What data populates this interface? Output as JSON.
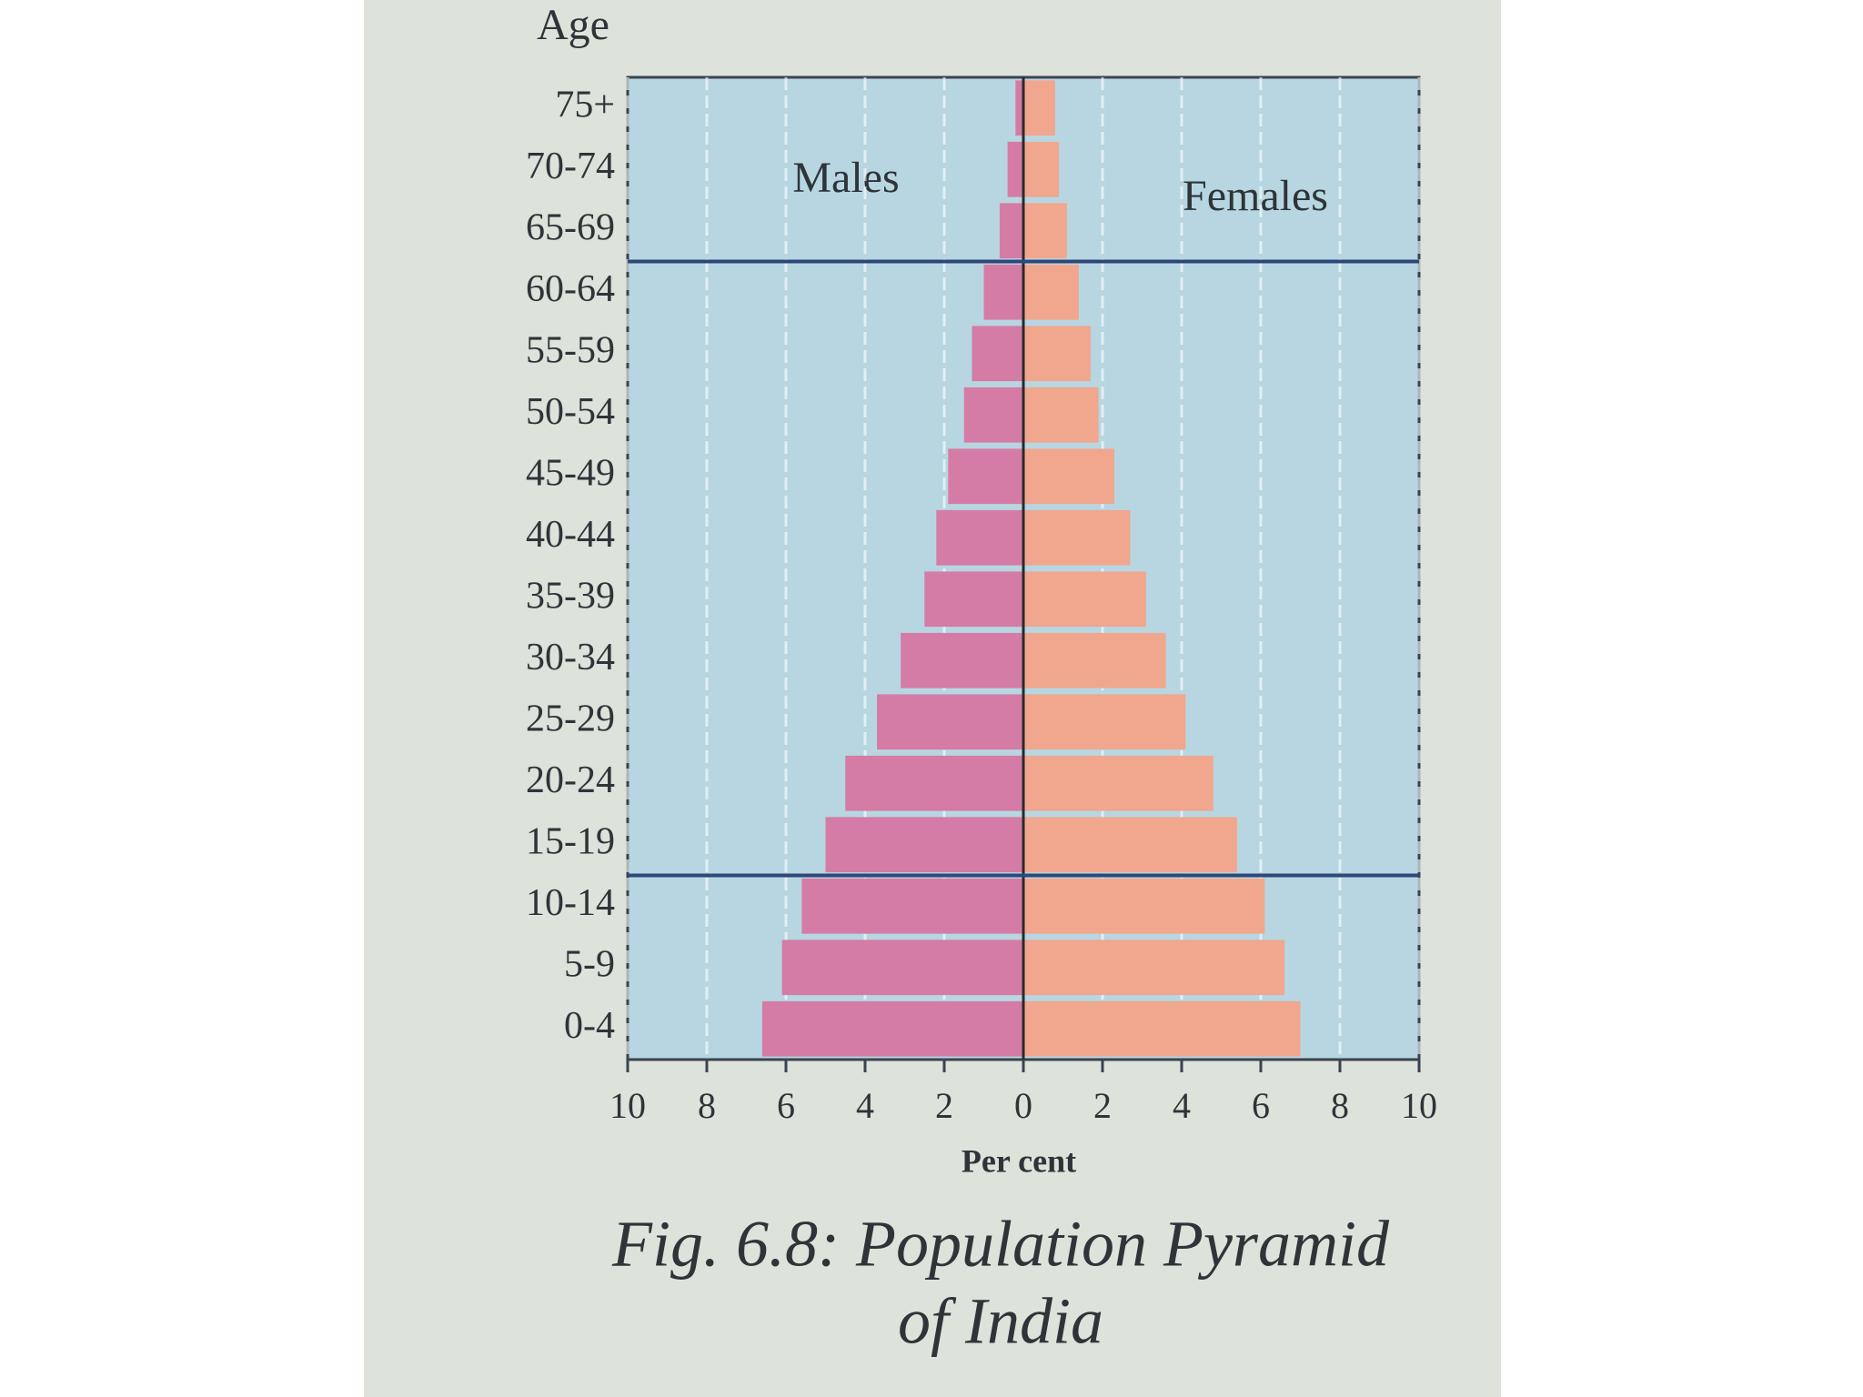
{
  "chart_data": {
    "type": "pyramid",
    "title": [
      "Fig. 6.8: Population Pyramid",
      "of India"
    ],
    "y_label": "Age",
    "x_label": "Per cent",
    "categories": [
      "0-4",
      "5-9",
      "10-14",
      "15-19",
      "20-24",
      "25-29",
      "30-34",
      "35-39",
      "40-44",
      "45-49",
      "50-54",
      "55-59",
      "60-64",
      "65-69",
      "70-74",
      "75+"
    ],
    "series": [
      {
        "name": "Males",
        "color": "#d47ca6",
        "values": [
          -6.6,
          -6.1,
          -5.6,
          -5.0,
          -4.5,
          -3.7,
          -3.1,
          -2.5,
          -2.2,
          -1.9,
          -1.5,
          -1.3,
          -1.0,
          -0.6,
          -0.4,
          -0.2
        ]
      },
      {
        "name": "Females",
        "color": "#f0a78e",
        "values": [
          7.0,
          6.6,
          6.1,
          5.4,
          4.8,
          4.1,
          3.6,
          3.1,
          2.7,
          2.3,
          1.9,
          1.7,
          1.4,
          1.1,
          0.9,
          0.8
        ]
      }
    ],
    "xlim": [
      -10,
      10
    ],
    "xticks": [
      {
        "value": -10,
        "label": "10"
      },
      {
        "value": -8,
        "label": "8"
      },
      {
        "value": -6,
        "label": "6"
      },
      {
        "value": -4,
        "label": "4"
      },
      {
        "value": -2,
        "label": "2"
      },
      0,
      2,
      4,
      6,
      8,
      10
    ],
    "grid": true
  }
}
